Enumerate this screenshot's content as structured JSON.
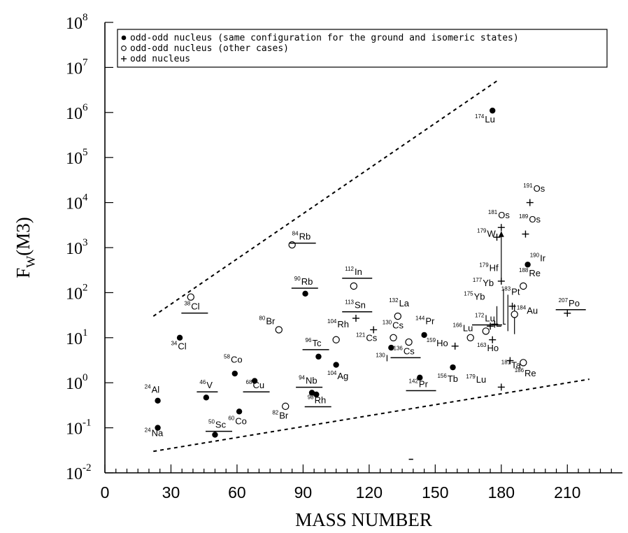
{
  "chart_data": {
    "type": "scatter",
    "xlabel": "MASS NUMBER",
    "ylabel": "F",
    "ylabel_sub": "W",
    "ylabel_paren": "(M3)",
    "xlim": [
      0,
      235
    ],
    "ylim": [
      0.01,
      100000000
    ],
    "yscale": "log",
    "x_ticks": [
      0,
      30,
      60,
      90,
      120,
      150,
      180,
      210
    ],
    "y_tick_exponents": [
      -2,
      -1,
      0,
      1,
      2,
      3,
      4,
      5,
      6,
      7,
      8
    ],
    "y_tick_base": "10",
    "legend": [
      {
        "marker": "●",
        "label": "odd-odd nucleus (same configuration for the ground  and isomeric states)"
      },
      {
        "marker": "○",
        "label": "odd-odd nucleus (other cases)"
      },
      {
        "marker": "+",
        "label": "odd nucleus"
      }
    ],
    "legend_position": "top",
    "bounds": [
      {
        "name": "upper",
        "style": "dashed",
        "x": [
          22,
          178
        ],
        "y": [
          30,
          5000000
        ]
      },
      {
        "name": "lower",
        "style": "dashed",
        "x": [
          22,
          220
        ],
        "y": [
          0.03,
          1.2
        ]
      }
    ],
    "points": [
      {
        "A": "24",
        "el": "Na",
        "x": 24,
        "y": 0.1,
        "marker": "filled",
        "lx": 18,
        "ly": 0.065
      },
      {
        "A": "24",
        "el": "Al",
        "x": 24,
        "y": 0.4,
        "marker": "filled",
        "lx": 18,
        "ly": 0.6
      },
      {
        "A": "34",
        "el": "Cl",
        "x": 34,
        "y": 10,
        "marker": "filled",
        "lx": 30,
        "ly": 5.5
      },
      {
        "A": "38",
        "el": "Cl",
        "x": 39,
        "y": 80,
        "marker": "open",
        "lx": 36,
        "ly": 42,
        "underline": true
      },
      {
        "A": "46",
        "el": "V",
        "x": 46,
        "y": 0.47,
        "marker": "filled",
        "lx": 43,
        "ly": 0.75,
        "underline": true
      },
      {
        "A": "50",
        "el": "Sc",
        "x": 50,
        "y": 0.07,
        "marker": "filled",
        "lx": 47,
        "ly": 0.1,
        "underline": true
      },
      {
        "A": "58",
        "el": "Co",
        "x": 59,
        "y": 1.6,
        "marker": "filled",
        "lx": 54,
        "ly": 2.8
      },
      {
        "A": "60",
        "el": "Co",
        "x": 61,
        "y": 0.23,
        "marker": "filled",
        "lx": 56,
        "ly": 0.12
      },
      {
        "A": "68",
        "el": "Cu",
        "x": 68,
        "y": 1.1,
        "marker": "filled",
        "lx": 64,
        "ly": 0.75,
        "underline": true
      },
      {
        "A": "80",
        "el": "Br",
        "x": 79,
        "y": 15,
        "marker": "open",
        "lx": 70,
        "ly": 20
      },
      {
        "A": "82",
        "el": "Br",
        "x": 82,
        "y": 0.3,
        "marker": "open",
        "lx": 76,
        "ly": 0.16
      },
      {
        "A": "84",
        "el": "Rb",
        "x": 85,
        "y": 1150,
        "marker": "open",
        "lx": 85,
        "ly": 1500,
        "underline": true
      },
      {
        "A": "90",
        "el": "Rb",
        "x": 91,
        "y": 95,
        "marker": "filled",
        "lx": 86,
        "ly": 150,
        "underline": true
      },
      {
        "A": "94",
        "el": "Nb",
        "x": 94,
        "y": 0.6,
        "marker": "filled",
        "lx": 88,
        "ly": 0.95,
        "underline": true
      },
      {
        "A": "96",
        "el": "Tc",
        "x": 97,
        "y": 3.8,
        "marker": "filled",
        "lx": 91,
        "ly": 6.5,
        "underline": true
      },
      {
        "A": "98",
        "el": "Rh",
        "x": 96,
        "y": 0.55,
        "marker": "filled",
        "lx": 92,
        "ly": 0.35,
        "underline": true
      },
      {
        "A": "104",
        "el": "Rh",
        "x": 105,
        "y": 9,
        "marker": "open",
        "lx": 101,
        "ly": 17
      },
      {
        "A": "104",
        "el": "Ag",
        "x": 105,
        "y": 2.5,
        "marker": "filled",
        "lx": 101,
        "ly": 1.2
      },
      {
        "A": "112",
        "el": "In",
        "x": 113,
        "y": 140,
        "marker": "open",
        "lx": 109,
        "ly": 250,
        "underline": true
      },
      {
        "A": "113",
        "el": "Sn",
        "x": 114,
        "y": 27,
        "marker": "plus",
        "lx": 109,
        "ly": 45,
        "underline": true
      },
      {
        "A": "121",
        "el": "Cs",
        "x": 122,
        "y": 15,
        "marker": "plus",
        "lx": 114,
        "ly": 8.5
      },
      {
        "A": "130",
        "el": "I",
        "x": 130,
        "y": 6,
        "marker": "filled",
        "lx": 123,
        "ly": 3.0
      },
      {
        "A": "130",
        "el": "Cs",
        "x": 131,
        "y": 10,
        "marker": "open",
        "lx": 126,
        "ly": 16
      },
      {
        "A": "132",
        "el": "La",
        "x": 133,
        "y": 30,
        "marker": "open",
        "lx": 129,
        "ly": 50
      },
      {
        "A": "136",
        "el": "Cs",
        "x": 138,
        "y": 8,
        "marker": "open",
        "lx": 131,
        "ly": 4.3,
        "underline": true
      },
      {
        "A": "142",
        "el": "Pr",
        "x": 143,
        "y": 1.3,
        "marker": "filled",
        "lx": 138,
        "ly": 0.8,
        "underline": true
      },
      {
        "A": "144",
        "el": "Pr",
        "x": 145,
        "y": 11.5,
        "marker": "filled",
        "lx": 141,
        "ly": 20
      },
      {
        "A": "156",
        "el": "Tb",
        "x": 158,
        "y": 2.2,
        "marker": "filled",
        "lx": 151,
        "ly": 1.05
      },
      {
        "A": "159",
        "el": "Ho",
        "x": 159,
        "y": 6.5,
        "marker": "plus",
        "lx": 146,
        "ly": 6.5
      },
      {
        "A": "163",
        "el": "Ho",
        "x": 176,
        "y": 9,
        "marker": "plus",
        "lx": 169,
        "ly": 5.0
      },
      {
        "A": "166",
        "el": "Lu",
        "x": 166,
        "y": 10,
        "marker": "open",
        "lx": 158,
        "ly": 14
      },
      {
        "A": "172",
        "el": "Lu",
        "x": 173,
        "y": 14,
        "marker": "open",
        "lx": 168,
        "ly": 23,
        "underline": true
      },
      {
        "A": "175",
        "el": "Yb",
        "x": 175,
        "y": 18,
        "marker": "plus",
        "lx": 163,
        "ly": 70
      },
      {
        "A": "177",
        "el": "Yb",
        "x": 177,
        "y": 20,
        "marker": "plus",
        "lx": 167,
        "ly": 140
      },
      {
        "A": "179",
        "el": "Hf",
        "x": 180,
        "y": 180,
        "marker": "plus",
        "lx": 170,
        "ly": 300
      },
      {
        "A": "179",
        "el": "Lu",
        "x": 180,
        "y": 0.8,
        "marker": "plus",
        "lx": 164,
        "ly": 1.0
      },
      {
        "A": "179",
        "el": "W",
        "x": 178,
        "y": 1700,
        "marker": "plus",
        "lx": 169,
        "ly": 1750
      },
      {
        "A": "181",
        "el": "Os",
        "x": 180,
        "y": 2800,
        "marker": "plus",
        "lx": 174,
        "ly": 4500
      },
      {
        "A": "181",
        "el": "Ta",
        "x": 184,
        "y": 3.1,
        "marker": "plus",
        "lx": 180,
        "ly": 2.1
      },
      {
        "A": "174",
        "el": "Lu",
        "x": 176,
        "y": 1100000,
        "marker": "filled",
        "lx": 168,
        "ly": 600000
      },
      {
        "A": "183",
        "el": "Pt",
        "x": 185,
        "y": 50,
        "marker": "plus",
        "lx": 180,
        "ly": 90
      },
      {
        "A": "184",
        "el": "Au",
        "x": 186,
        "y": 33,
        "marker": "open",
        "lx": 187,
        "ly": 34
      },
      {
        "A": "186",
        "el": "Re",
        "x": 190,
        "y": 2.8,
        "marker": "open",
        "lx": 186,
        "ly": 1.4
      },
      {
        "A": "188",
        "el": "Re",
        "x": 190,
        "y": 140,
        "marker": "open",
        "lx": 188,
        "ly": 230
      },
      {
        "A": "189",
        "el": "Os",
        "x": 191,
        "y": 2000,
        "marker": "plus",
        "lx": 188,
        "ly": 3600
      },
      {
        "A": "190",
        "el": "Ir",
        "x": 192,
        "y": 420,
        "marker": "filled",
        "lx": 193,
        "ly": 500
      },
      {
        "A": "191",
        "el": "Os",
        "x": 193,
        "y": 10000,
        "marker": "plus",
        "lx": 190,
        "ly": 17500
      },
      {
        "A": "207",
        "el": "Po",
        "x": 210,
        "y": 35,
        "marker": "plus",
        "lx": 206,
        "ly": 50,
        "underline": true
      }
    ],
    "connectors": [
      {
        "x": [
          180,
          180
        ],
        "y": [
          180,
          2300
        ],
        "arrow": true
      },
      {
        "x": [
          178,
          178,
          180
        ],
        "y": [
          50,
          18,
          18
        ]
      },
      {
        "x": [
          181,
          181,
          182
        ],
        "y": [
          120,
          20,
          20
        ]
      },
      {
        "x": [
          183,
          183
        ],
        "y": [
          90,
          14
        ]
      },
      {
        "x": [
          186,
          186
        ],
        "y": [
          55,
          12
        ]
      }
    ]
  }
}
